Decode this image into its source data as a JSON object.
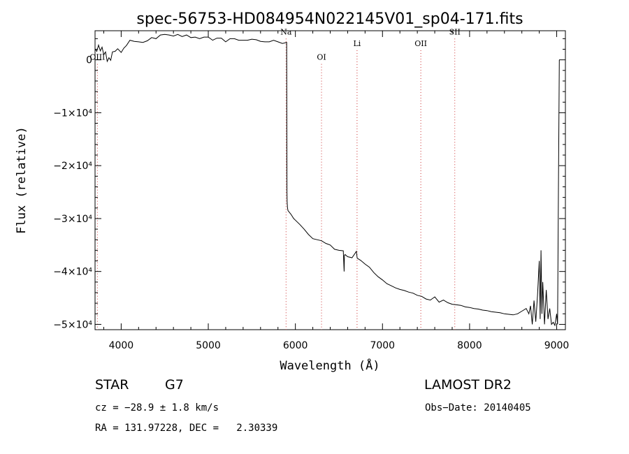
{
  "chart_data": {
    "type": "line",
    "title": "spec-56753-HD084954N022145V01_sp04-171.fits",
    "xlabel": "Wavelength (Å)",
    "ylabel": "Flux (relative)",
    "xlim": [
      3700,
      9100
    ],
    "ylim": [
      -51000,
      5500
    ],
    "x_ticks": [
      {
        "value": 4000,
        "label": "4000"
      },
      {
        "value": 5000,
        "label": "5000"
      },
      {
        "value": 6000,
        "label": "6000"
      },
      {
        "value": 7000,
        "label": "7000"
      },
      {
        "value": 8000,
        "label": "8000"
      },
      {
        "value": 9000,
        "label": "9000"
      }
    ],
    "y_ticks": [
      {
        "value": 0,
        "label": "0"
      },
      {
        "value": -10000,
        "label": "−1×10⁴"
      },
      {
        "value": -20000,
        "label": "−2×10⁴"
      },
      {
        "value": -30000,
        "label": "−3×10⁴"
      },
      {
        "value": -40000,
        "label": "−4×10⁴"
      },
      {
        "value": -50000,
        "label": "−5×10⁴"
      }
    ],
    "grid": false,
    "line_color": "#000000",
    "marker_color": "#cc3333",
    "lines": [
      {
        "label": "OIII",
        "x": 3727,
        "label_y": 0
      },
      {
        "label": "Na",
        "x": 5893,
        "label_y": 4800
      },
      {
        "label": "OI",
        "x": 6300,
        "label_y": 0
      },
      {
        "label": "Li",
        "x": 6708,
        "label_y": 2600
      },
      {
        "label": "OII",
        "x": 7440,
        "label_y": 2600
      },
      {
        "label": "SII",
        "x": 7830,
        "label_y": 4800
      }
    ],
    "series": [
      {
        "x": [
          3700,
          3720,
          3740,
          3760,
          3780,
          3800,
          3820,
          3840,
          3860,
          3880,
          3900,
          3930,
          3960,
          4000,
          4030,
          4060,
          4100,
          4150,
          4200,
          4250,
          4300,
          4350,
          4400,
          4450,
          4500,
          4550,
          4600,
          4650,
          4700,
          4750,
          4800,
          4850,
          4900,
          4950,
          5000,
          5050,
          5100,
          5150,
          5200,
          5250,
          5300,
          5350,
          5400,
          5450,
          5500,
          5550,
          5600,
          5650,
          5700,
          5750,
          5800,
          5850,
          5880,
          5900,
          5903,
          5906,
          5910,
          5915,
          5920,
          5930,
          5950,
          5980,
          6000,
          6050,
          6100,
          6150,
          6200,
          6250,
          6300,
          6350,
          6400,
          6450,
          6500,
          6550,
          6560,
          6563,
          6570,
          6600,
          6650,
          6700,
          6710,
          6750,
          6800,
          6850,
          6900,
          6950,
          7000,
          7050,
          7100,
          7150,
          7200,
          7250,
          7300,
          7350,
          7400,
          7450,
          7500,
          7550,
          7600,
          7650,
          7700,
          7750,
          7800,
          7850,
          7900,
          7950,
          8000,
          8050,
          8100,
          8150,
          8200,
          8250,
          8300,
          8350,
          8400,
          8450,
          8500,
          8550,
          8600,
          8650,
          8680,
          8700,
          8720,
          8740,
          8760,
          8780,
          8800,
          8810,
          8820,
          8830,
          8840,
          8860,
          8880,
          8900,
          8920,
          8940,
          8960,
          8980,
          9000,
          9010,
          9020,
          9030
        ],
        "y": [
          2000,
          1600,
          2800,
          1700,
          2400,
          1000,
          1500,
          -300,
          400,
          -100,
          1500,
          1600,
          2100,
          1400,
          2200,
          2700,
          3700,
          3500,
          3400,
          3300,
          3600,
          4200,
          4000,
          4700,
          4800,
          4700,
          4500,
          4800,
          4400,
          4700,
          4200,
          4300,
          4000,
          4300,
          4300,
          3700,
          4100,
          4100,
          3400,
          4000,
          4000,
          3700,
          3700,
          3700,
          3900,
          3800,
          3500,
          3400,
          3400,
          3700,
          3400,
          3100,
          3200,
          3300,
          -25000,
          -27000,
          -28000,
          -28500,
          -28600,
          -28800,
          -29200,
          -30000,
          -30300,
          -31100,
          -32000,
          -33000,
          -33800,
          -34000,
          -34200,
          -34700,
          -35000,
          -35800,
          -36000,
          -36100,
          -40000,
          -37000,
          -36800,
          -37200,
          -37400,
          -36200,
          -37500,
          -37900,
          -38600,
          -39200,
          -40200,
          -41000,
          -41600,
          -42300,
          -42700,
          -43100,
          -43400,
          -43600,
          -43900,
          -44100,
          -44500,
          -44700,
          -45200,
          -45400,
          -44800,
          -45800,
          -45400,
          -45900,
          -46200,
          -46300,
          -46400,
          -46700,
          -46800,
          -47000,
          -47100,
          -47300,
          -47400,
          -47600,
          -47700,
          -47800,
          -48000,
          -48100,
          -48200,
          -48000,
          -47500,
          -47000,
          -48000,
          -46500,
          -50000,
          -45500,
          -49500,
          -44500,
          -38000,
          -49000,
          -36000,
          -48000,
          -42000,
          -50000,
          -43500,
          -49000,
          -47000,
          -50000,
          -49600,
          -50200,
          -48000,
          -50000,
          -25000,
          0
        ]
      }
    ]
  },
  "info": {
    "object_class": "STAR",
    "subclass": "G7",
    "survey": "LAMOST DR2",
    "redshift": "cz = −28.9 ± 1.8 km/s",
    "obs_date": "Obs−Date: 20140405",
    "coords": "RA = 131.97228, DEC =   2.30339"
  }
}
